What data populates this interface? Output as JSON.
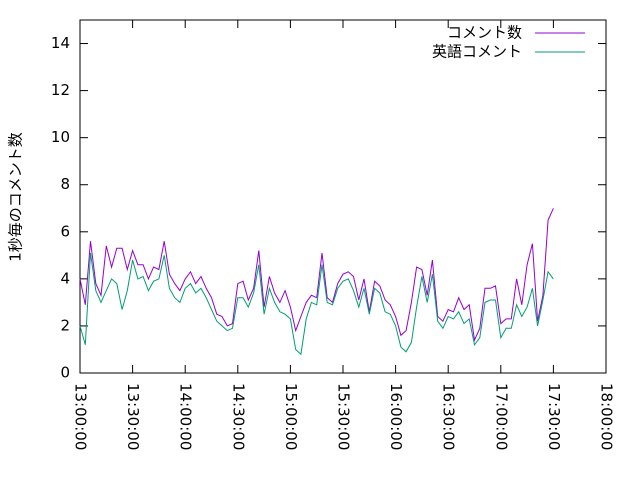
{
  "chart_data": {
    "type": "line",
    "ylabel": "1秒毎のコメント数",
    "x": [
      "13:00:00",
      "13:03:00",
      "13:06:00",
      "13:09:00",
      "13:12:00",
      "13:15:00",
      "13:18:00",
      "13:21:00",
      "13:24:00",
      "13:27:00",
      "13:30:00",
      "13:33:00",
      "13:36:00",
      "13:39:00",
      "13:42:00",
      "13:45:00",
      "13:48:00",
      "13:51:00",
      "13:54:00",
      "13:57:00",
      "14:00:00",
      "14:03:00",
      "14:06:00",
      "14:09:00",
      "14:12:00",
      "14:15:00",
      "14:18:00",
      "14:21:00",
      "14:24:00",
      "14:27:00",
      "14:30:00",
      "14:33:00",
      "14:36:00",
      "14:39:00",
      "14:42:00",
      "14:45:00",
      "14:48:00",
      "14:51:00",
      "14:54:00",
      "14:57:00",
      "15:00:00",
      "15:03:00",
      "15:06:00",
      "15:09:00",
      "15:12:00",
      "15:15:00",
      "15:18:00",
      "15:21:00",
      "15:24:00",
      "15:27:00",
      "15:30:00",
      "15:33:00",
      "15:36:00",
      "15:39:00",
      "15:42:00",
      "15:45:00",
      "15:48:00",
      "15:51:00",
      "15:54:00",
      "15:57:00",
      "16:00:00",
      "16:03:00",
      "16:06:00",
      "16:09:00",
      "16:12:00",
      "16:15:00",
      "16:18:00",
      "16:21:00",
      "16:24:00",
      "16:27:00",
      "16:30:00",
      "16:33:00",
      "16:36:00",
      "16:39:00",
      "16:42:00",
      "16:45:00",
      "16:48:00",
      "16:51:00",
      "16:54:00",
      "16:57:00",
      "17:00:00",
      "17:03:00",
      "17:06:00",
      "17:09:00",
      "17:12:00",
      "17:15:00",
      "17:18:00",
      "17:21:00",
      "17:24:00",
      "17:27:00",
      "17:30:00"
    ],
    "series": [
      {
        "name": "コメント数",
        "color": "#9400d3",
        "values": [
          4.0,
          2.9,
          5.6,
          3.8,
          3.3,
          5.4,
          4.5,
          5.3,
          5.3,
          4.4,
          5.2,
          4.6,
          4.6,
          4.0,
          4.5,
          4.4,
          5.6,
          4.2,
          3.8,
          3.5,
          4.0,
          4.3,
          3.8,
          4.1,
          3.6,
          3.2,
          2.5,
          2.4,
          2.0,
          2.1,
          3.8,
          3.9,
          3.1,
          3.6,
          5.2,
          2.8,
          4.1,
          3.4,
          3.0,
          3.5,
          2.8,
          1.8,
          2.4,
          3.0,
          3.3,
          3.2,
          5.1,
          3.2,
          3.0,
          3.8,
          4.2,
          4.3,
          4.1,
          3.1,
          4.0,
          2.6,
          3.9,
          3.7,
          3.1,
          2.9,
          2.4,
          1.6,
          1.8,
          3.0,
          4.5,
          4.4,
          3.3,
          4.8,
          2.4,
          2.2,
          2.7,
          2.6,
          3.2,
          2.7,
          2.9,
          1.4,
          1.9,
          3.6,
          3.6,
          3.7,
          2.1,
          2.3,
          2.3,
          4.0,
          2.9,
          4.6,
          5.5,
          2.2,
          3.3,
          6.5,
          7.0
        ]
      },
      {
        "name": "英語コメント",
        "color": "#009e73",
        "values": [
          2.0,
          1.2,
          5.1,
          3.5,
          3.0,
          3.5,
          4.0,
          3.8,
          2.7,
          3.5,
          4.8,
          4.0,
          4.1,
          3.5,
          3.9,
          4.0,
          5.0,
          3.6,
          3.2,
          3.0,
          3.6,
          3.8,
          3.4,
          3.6,
          3.2,
          2.7,
          2.2,
          2.0,
          1.8,
          1.9,
          3.2,
          3.2,
          2.8,
          3.4,
          4.6,
          2.5,
          3.6,
          3.0,
          2.6,
          2.5,
          2.3,
          1.0,
          0.8,
          2.3,
          3.0,
          2.9,
          4.6,
          3.0,
          2.9,
          3.6,
          3.9,
          4.0,
          3.5,
          2.8,
          3.6,
          2.5,
          3.6,
          3.4,
          2.6,
          2.5,
          2.0,
          1.1,
          0.9,
          1.3,
          2.8,
          4.1,
          3.0,
          4.2,
          2.2,
          1.9,
          2.4,
          2.3,
          2.6,
          2.1,
          2.3,
          1.2,
          1.5,
          3.0,
          3.1,
          3.1,
          1.5,
          1.9,
          1.9,
          2.9,
          2.4,
          2.8,
          3.6,
          2.0,
          3.1,
          4.3,
          4.0
        ]
      }
    ],
    "xlim": [
      "13:00:00",
      "18:00:00"
    ],
    "xticks": [
      "13:00:00",
      "13:30:00",
      "14:00:00",
      "14:30:00",
      "15:00:00",
      "15:30:00",
      "16:00:00",
      "16:30:00",
      "17:00:00",
      "17:30:00",
      "18:00:00"
    ],
    "ylim": [
      0,
      15
    ],
    "yticks": [
      0,
      2,
      4,
      6,
      8,
      10,
      12,
      14
    ],
    "legend": "top-right"
  }
}
